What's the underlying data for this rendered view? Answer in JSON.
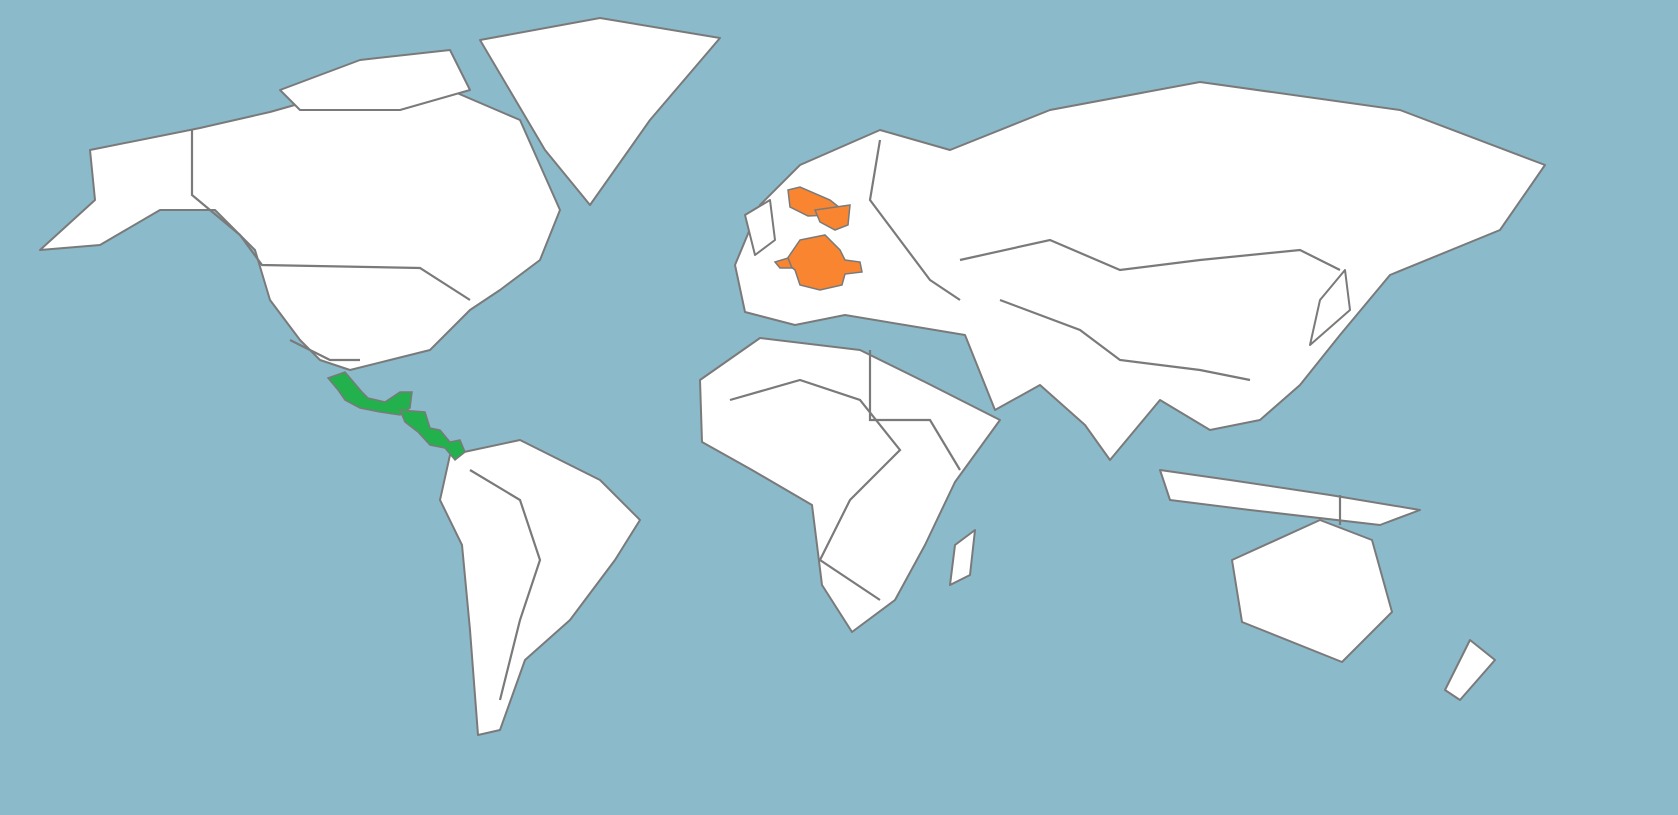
{
  "map": {
    "colors": {
      "ocean": "#8bbbcb",
      "land": "#ffffff",
      "border": "#7a7a7a",
      "highlight_orange": "#f98530",
      "highlight_green": "#22b14c"
    },
    "highlight_groups": [
      {
        "color": "#f98530",
        "region": "northern-central-europe"
      },
      {
        "color": "#22b14c",
        "region": "mexico-central-america"
      }
    ]
  }
}
